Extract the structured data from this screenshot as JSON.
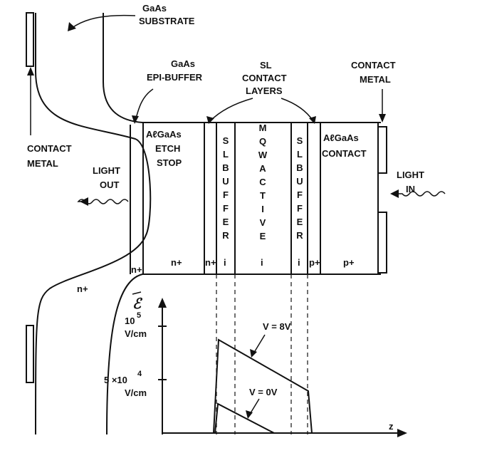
{
  "labels": {
    "substrate": [
      "GaAs",
      "SUBSTRATE"
    ],
    "epi_buffer": [
      "GaAs",
      "EPI-BUFFER"
    ],
    "sl_contact": [
      "SL",
      "CONTACT",
      "LAYERS"
    ],
    "contact_metal_right": [
      "CONTACT",
      "METAL"
    ],
    "contact_metal_left": [
      "CONTACT",
      "METAL"
    ],
    "etch_stop": [
      "AℓGaAs",
      "ETCH",
      "STOP"
    ],
    "sl_buffer_left": "SLBUFFER",
    "mqw_active": "MQWACTIVE",
    "sl_buffer_right": "SLBUFFER",
    "algaas_contact": [
      "AℓGaAs",
      "CONTACT"
    ],
    "light_out": [
      "LIGHT",
      "OUT"
    ],
    "light_in": [
      "LIGHT",
      "IN"
    ],
    "doping": {
      "n_plus_buffer": "n+",
      "n_plus_etch": "n+",
      "n_plus_sl": "n+",
      "i_sl_left": "i",
      "i_mqw": "i",
      "i_sl_right": "i",
      "p_plus_sl": "p+",
      "p_plus_contact": "p+",
      "n_plus_substrate": "n+"
    }
  },
  "field_plot": {
    "y_symbol": "ℰ",
    "tick_1e5": [
      "10",
      "5",
      "V/cm"
    ],
    "tick_5e4": [
      "5 ×10",
      "4",
      "V/cm"
    ],
    "x_label": "z",
    "curve_8v": "V = 8V",
    "curve_0v": "V = 0V"
  }
}
